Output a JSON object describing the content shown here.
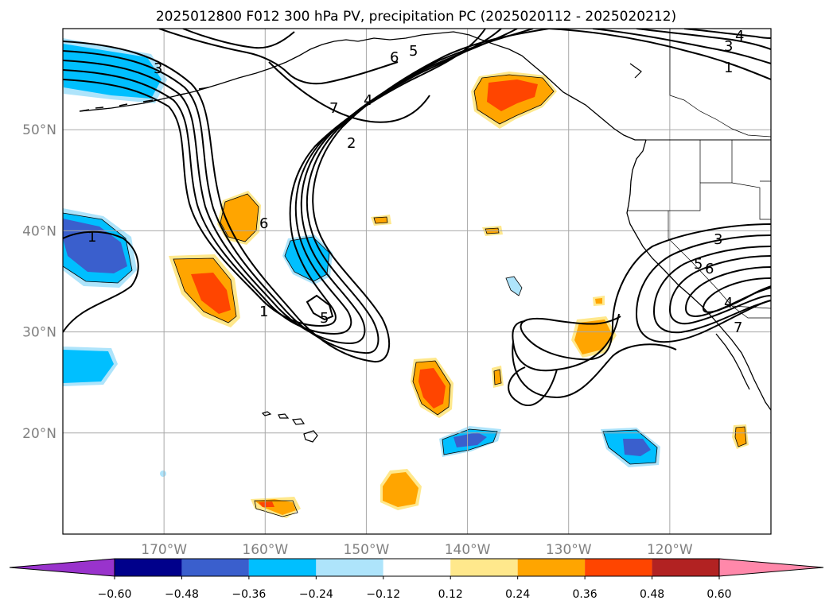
{
  "figure": {
    "title": "2025012800 F012 300 hPa PV, precipitation PC (2025020112 - 2025020212)"
  },
  "map": {
    "lon_range": [
      -180,
      -110
    ],
    "lat_range": [
      10,
      60
    ],
    "lat_ticks": [
      {
        "value": 50,
        "label": "50°N"
      },
      {
        "value": 40,
        "label": "40°N"
      },
      {
        "value": 30,
        "label": "30°N"
      },
      {
        "value": 20,
        "label": "20°N"
      }
    ],
    "lon_ticks": [
      {
        "value": -170,
        "label": "170°W"
      },
      {
        "value": -160,
        "label": "160°W"
      },
      {
        "value": -150,
        "label": "150°W"
      },
      {
        "value": -140,
        "label": "140°W"
      },
      {
        "value": -130,
        "label": "130°W"
      },
      {
        "value": -120,
        "label": "120°W"
      }
    ],
    "grid": true,
    "grid_color": "#a8a8a8",
    "contour_labels": [
      "3",
      "4",
      "3",
      "1",
      "6",
      "5",
      "7",
      "4",
      "2",
      "6",
      "1",
      "1",
      "5",
      "3",
      "5",
      "6",
      "4",
      "7"
    ],
    "shading_blobs": [
      {
        "lon": -171,
        "lat": 55.5,
        "value": -0.36
      },
      {
        "lon": -175,
        "lat": 38.5,
        "value": -0.48
      },
      {
        "lon": -177.5,
        "lat": 26.5,
        "value": -0.36
      },
      {
        "lon": -158,
        "lat": 37.5,
        "value": -0.36
      },
      {
        "lon": -161,
        "lat": 41,
        "value": 0.24
      },
      {
        "lon": -165,
        "lat": 34,
        "value": 0.36
      },
      {
        "lon": -143,
        "lat": 25,
        "value": 0.36
      },
      {
        "lon": -145,
        "lat": 14,
        "value": 0.24
      },
      {
        "lon": -157.5,
        "lat": 13,
        "value": 0.24
      },
      {
        "lon": -136,
        "lat": 54.5,
        "value": 0.36
      },
      {
        "lon": -140,
        "lat": 19.5,
        "value": -0.48
      },
      {
        "lon": -123.5,
        "lat": 19,
        "value": -0.48
      },
      {
        "lon": -127,
        "lat": 29.5,
        "value": 0.24
      },
      {
        "lon": -134.5,
        "lat": 34.5,
        "value": -0.12
      },
      {
        "lon": -113,
        "lat": 19.5,
        "value": 0.24
      }
    ]
  },
  "colorbar": {
    "extend": "both",
    "colors": [
      "#9933cc",
      "#00008b",
      "#3a5fcd",
      "#00bfff",
      "#aee4fb",
      "#ffffff",
      "#ffe88c",
      "#ffa500",
      "#ff4500",
      "#b22222",
      "#ff88aa"
    ],
    "tick_labels": [
      "−0.60",
      "−0.48",
      "−0.36",
      "−0.24",
      "−0.12",
      "0.12",
      "0.24",
      "0.36",
      "0.48",
      "0.60"
    ]
  }
}
